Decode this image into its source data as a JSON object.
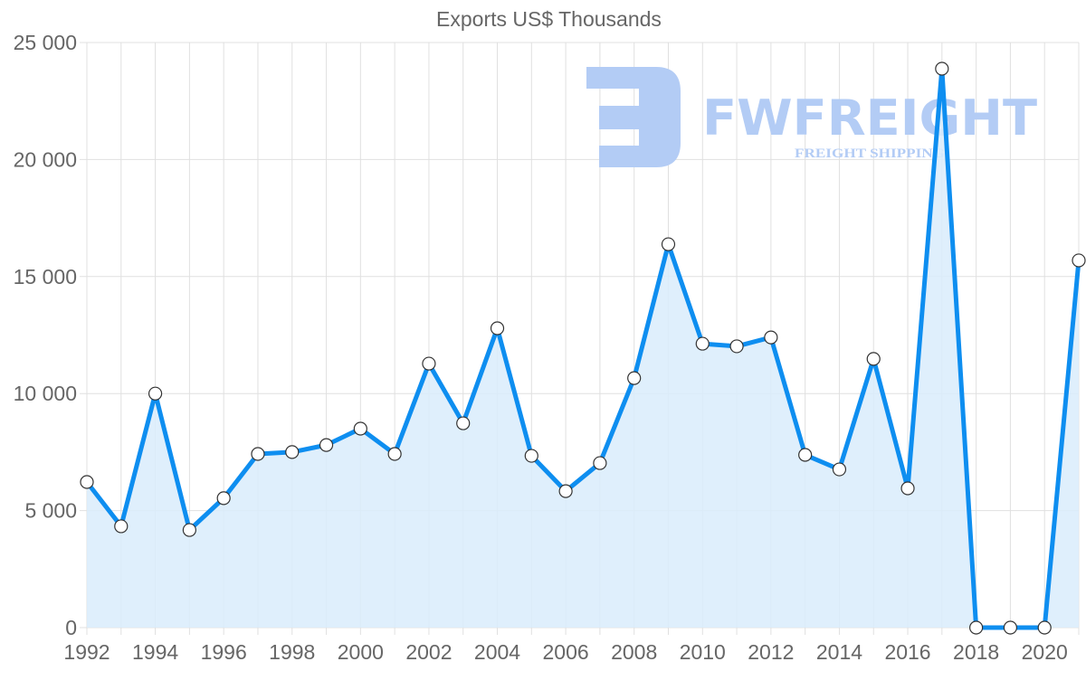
{
  "chart_data": {
    "type": "line",
    "title": "Exports US$ Thousands",
    "xlabel": "",
    "ylabel": "",
    "x": [
      1992,
      1993,
      1994,
      1995,
      1996,
      1997,
      1998,
      1999,
      2000,
      2001,
      2002,
      2003,
      2004,
      2005,
      2006,
      2007,
      2008,
      2009,
      2010,
      2011,
      2012,
      2013,
      2014,
      2015,
      2016,
      2017,
      2018,
      2019,
      2020,
      2021
    ],
    "series": [
      {
        "name": "Exports US$ Thousands",
        "values": [
          6220,
          4330,
          10000,
          4170,
          5530,
          7420,
          7500,
          7800,
          8500,
          7420,
          11280,
          8730,
          12790,
          7340,
          5830,
          7030,
          10660,
          16380,
          12130,
          12020,
          12400,
          7380,
          6760,
          11480,
          5950,
          23880,
          0,
          0,
          0,
          15690
        ]
      }
    ],
    "ylim": [
      0,
      25000
    ],
    "yticks": [
      0,
      5000,
      10000,
      15000,
      20000,
      25000
    ],
    "ytick_labels": [
      "0",
      "5 000",
      "10 000",
      "15 000",
      "20 000",
      "25 000"
    ],
    "xtick_labels": [
      "1992",
      "1994",
      "1996",
      "1998",
      "2000",
      "2002",
      "2004",
      "2006",
      "2008",
      "2010",
      "2012",
      "2014",
      "2016",
      "2018",
      "2020"
    ],
    "grid": true,
    "legend": "none",
    "fill": true
  },
  "colors": {
    "line": "#0e8ef0",
    "fill": "#d9ecfc",
    "grid": "#e0e0e0",
    "point_fill": "#ffffff",
    "point_stroke": "#333333",
    "text": "#666666",
    "watermark": "#b3ccf5"
  },
  "watermark": {
    "brand": "FWFREIGHT",
    "tagline": "FREIGHT SHIPPING"
  }
}
